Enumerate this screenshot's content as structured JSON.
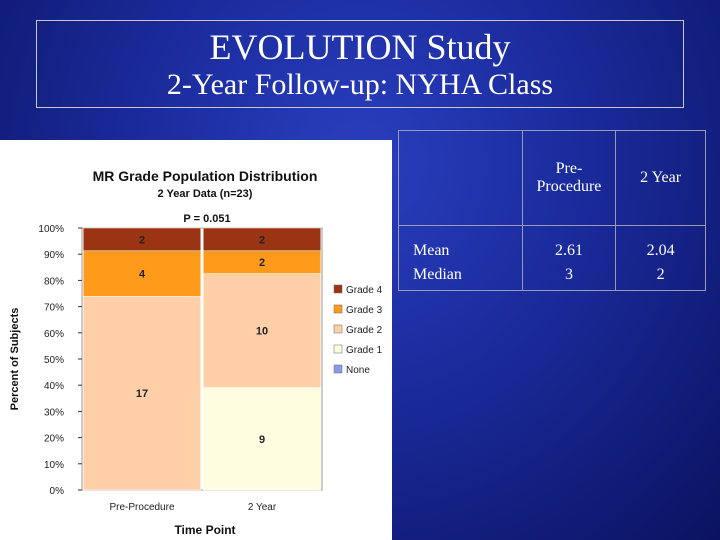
{
  "slide": {
    "title_line1": "EVOLUTION Study",
    "title_line2": "2-Year Follow-up: NYHA Class"
  },
  "chart_data": {
    "type": "bar",
    "stacked": true,
    "title": "MR Grade Population Distribution",
    "subtitle": "2 Year Data (n=23)",
    "annotation": "P = 0.051",
    "xlabel": "Time Point",
    "ylabel": "Percent of Subjects",
    "ylim": [
      0,
      100
    ],
    "yticks": [
      "0%",
      "10%",
      "20%",
      "30%",
      "40%",
      "50%",
      "60%",
      "70%",
      "80%",
      "90%",
      "100%"
    ],
    "categories": [
      "Pre-Procedure",
      "2 Year"
    ],
    "series": [
      {
        "name": "None",
        "color": "#8c9be8",
        "values": [
          0,
          0
        ],
        "labels": [
          "0",
          "0"
        ]
      },
      {
        "name": "Grade 1",
        "color": "#fffde0",
        "values": [
          0,
          39.1
        ],
        "labels": [
          "",
          "9"
        ]
      },
      {
        "name": "Grade 2",
        "color": "#ffcfa8",
        "values": [
          73.9,
          43.5
        ],
        "labels": [
          "17",
          "10"
        ]
      },
      {
        "name": "Grade 3",
        "color": "#ff9a1a",
        "values": [
          17.4,
          8.7
        ],
        "labels": [
          "4",
          "2"
        ]
      },
      {
        "name": "Grade 4",
        "color": "#9a3412",
        "values": [
          8.7,
          8.7
        ],
        "labels": [
          "2",
          "2"
        ]
      }
    ],
    "legend_order": [
      "Grade 4",
      "Grade 3",
      "Grade 2",
      "Grade 1",
      "None"
    ],
    "legend_position": "right"
  },
  "table": {
    "headers": [
      "",
      "Pre-\nProcedure",
      "2 Year"
    ],
    "rows": [
      {
        "label": "Mean",
        "pre": "2.61",
        "two_year": "2.04"
      },
      {
        "label": "Median",
        "pre": "3",
        "two_year": "2"
      }
    ]
  }
}
